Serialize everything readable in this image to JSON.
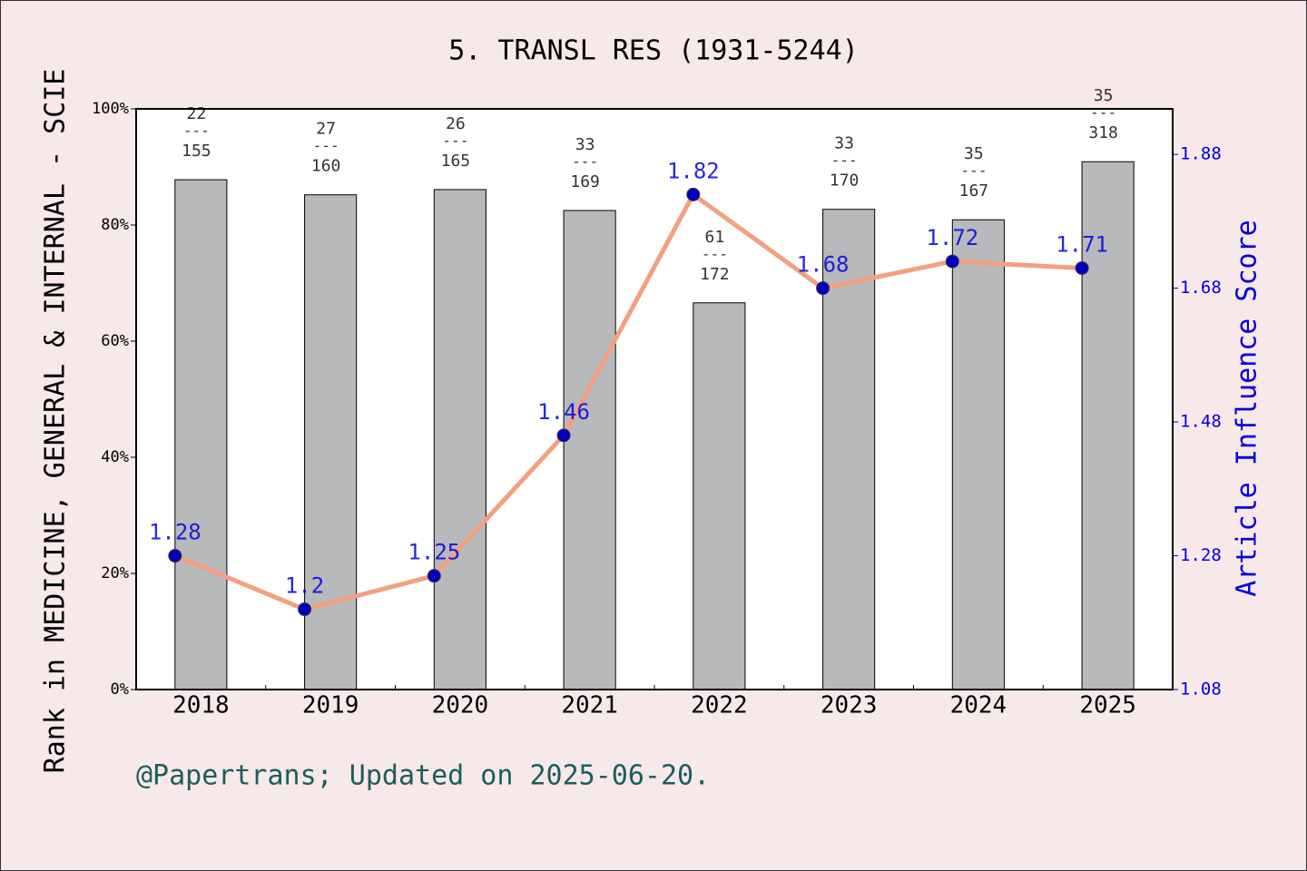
{
  "chart_data": {
    "type": "combo",
    "title": "5. TRANSL RES (1931-5244)",
    "ylabel": "Rank in MEDICINE, GENERAL & INTERNAL - SCIE",
    "y2label": "Article Influence Score",
    "footer": "@Papertrans; Updated on 2025-06-20.",
    "categories": [
      "2018",
      "2019",
      "2020",
      "2021",
      "2022",
      "2023",
      "2024",
      "2025"
    ],
    "ylim": [
      0,
      100
    ],
    "yticks": [
      {
        "value": 0,
        "label": "0%"
      },
      {
        "value": 20,
        "label": "20%"
      },
      {
        "value": 40,
        "label": "40%"
      },
      {
        "value": 60,
        "label": "60%"
      },
      {
        "value": 80,
        "label": "80%"
      },
      {
        "value": 100,
        "label": "100%"
      }
    ],
    "y2lim": [
      1.08,
      1.948
    ],
    "y2ticks": [
      1.08,
      1.28,
      1.48,
      1.68,
      1.88
    ],
    "rank_separator": "---",
    "series": [
      {
        "type": "bar",
        "color": "#b8b9bb",
        "values": [
          87.8,
          85.2,
          86.1,
          82.5,
          66.6,
          82.7,
          80.9,
          90.9
        ],
        "ranks": [
          22,
          27,
          26,
          33,
          61,
          33,
          35,
          35
        ],
        "totals": [
          155,
          160,
          165,
          169,
          172,
          170,
          167,
          318
        ]
      },
      {
        "type": "line",
        "axis": "y2",
        "color": "#f4a080",
        "marker_color": "#0000b8",
        "label_color": "#0000dd",
        "values": [
          1.28,
          1.2,
          1.25,
          1.46,
          1.82,
          1.68,
          1.72,
          1.71
        ]
      }
    ]
  }
}
